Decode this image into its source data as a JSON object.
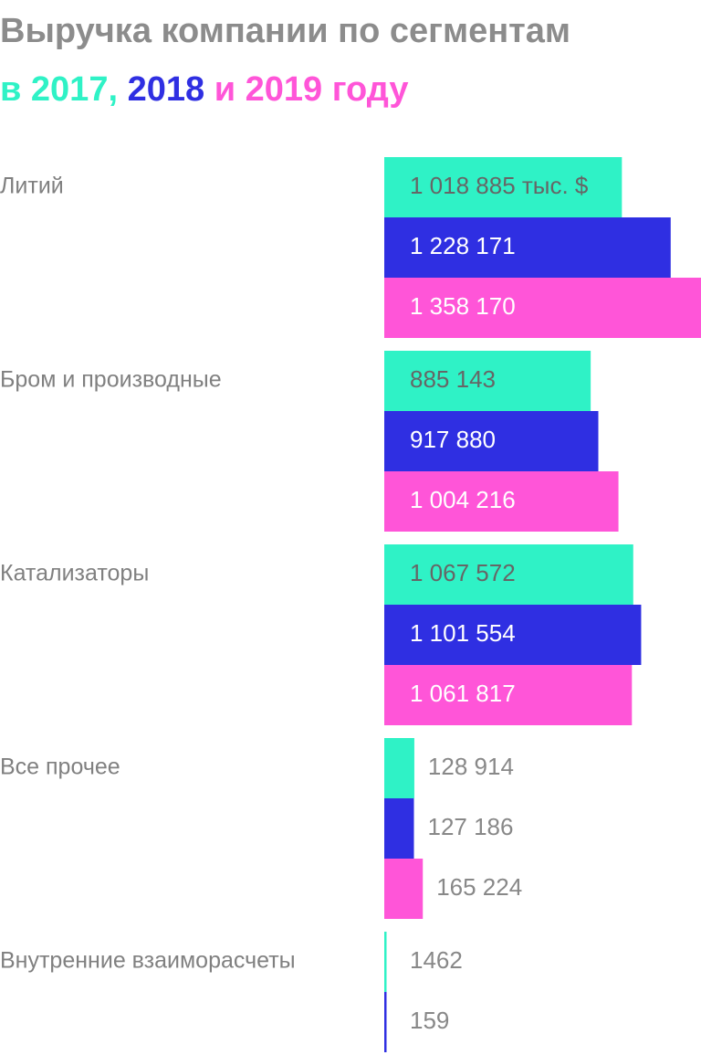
{
  "chart_data": {
    "type": "bar",
    "orientation": "horizontal",
    "title": "Выручка компании по сегментам",
    "categories": [
      "Литий",
      "Бром и производные",
      "Катализаторы",
      "Все прочее",
      "Внутренние взаиморасчеты"
    ],
    "series": [
      {
        "name": "в 2017,",
        "color": "#2ff2c6",
        "label_color": "#666666",
        "values": [
          1018885,
          885143,
          1067572,
          128914,
          1462
        ],
        "value_labels": [
          "1 018 885 тыс. $",
          "885 143",
          "1 067 572",
          "128 914",
          "1462"
        ]
      },
      {
        "name": "2018",
        "color": "#2f2fe2",
        "label_color": "#ffffff",
        "values": [
          1228171,
          917880,
          1101554,
          127186,
          159
        ],
        "value_labels": [
          "1 228 171",
          "917 880",
          "1 101 554",
          "127 186",
          "159"
        ]
      },
      {
        "name": "и 2019 году",
        "color": "#ff55d8",
        "label_color": "#ffffff",
        "values": [
          1358170,
          1004216,
          1061817,
          165224,
          null
        ],
        "value_labels": [
          "1 358 170",
          "1 004 216",
          "1 061 817",
          "165 224",
          null
        ]
      }
    ],
    "xlim": [
      0,
      1358170
    ]
  }
}
